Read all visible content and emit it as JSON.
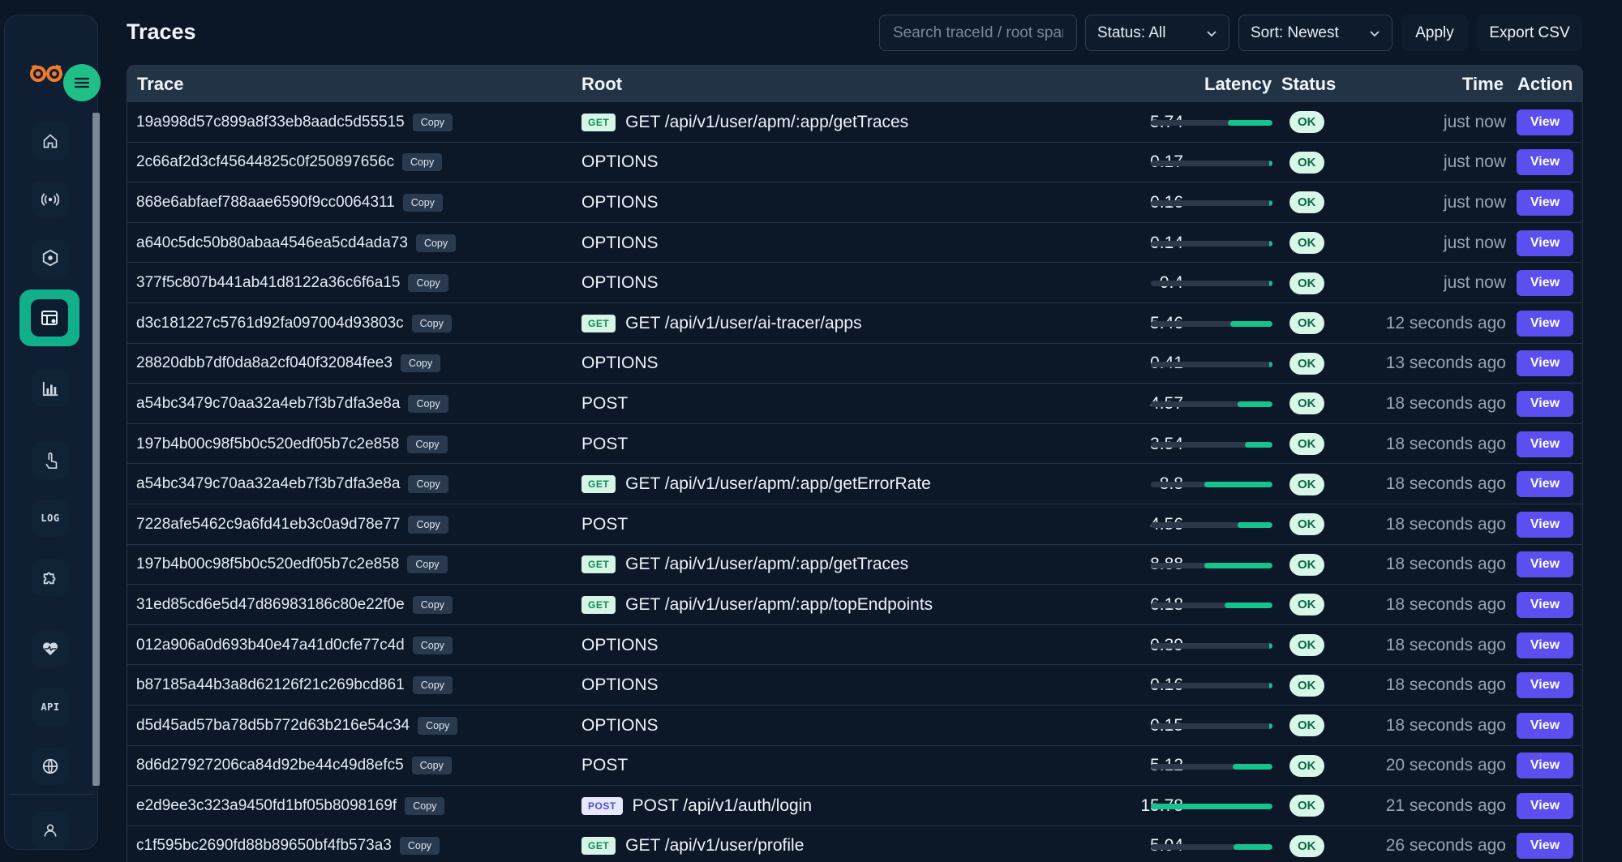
{
  "page": {
    "title": "Traces"
  },
  "toolbar": {
    "search_placeholder": "Search traceId / root span",
    "status_select": "Status: All",
    "sort_select": "Sort: Newest",
    "apply_label": "Apply",
    "export_label": "Export CSV"
  },
  "sidebar": {
    "nav": [
      {
        "name": "home-icon"
      },
      {
        "name": "broadcast-icon"
      },
      {
        "name": "cluster-icon"
      },
      {
        "name": "traces-icon",
        "active": true
      },
      {
        "name": "bar-chart-icon"
      },
      {
        "name": "touch-icon"
      },
      {
        "name": "log-icon",
        "text": "LOG"
      },
      {
        "name": "puzzle-icon"
      },
      {
        "name": "heartbeat-icon"
      },
      {
        "name": "api-icon",
        "text": "API"
      },
      {
        "name": "globe-icon"
      },
      {
        "name": "user-icon"
      }
    ]
  },
  "table": {
    "columns": [
      "Trace",
      "Root",
      "Latency",
      "Status",
      "Time",
      "Action"
    ],
    "copy_label": "Copy",
    "view_label": "View",
    "latency_max": 15.78,
    "rows": [
      {
        "trace": "19a998d57c899a8f33eb8aadc5d55515",
        "method": "GET",
        "root": "GET /api/v1/user/apm/:app/getTraces",
        "latency": "5.74",
        "status": "OK",
        "time": "just now"
      },
      {
        "trace": "2c66af2d3cf45644825c0f250897656c",
        "method": "",
        "root": "OPTIONS",
        "latency": "0.17",
        "status": "OK",
        "time": "just now"
      },
      {
        "trace": "868e6abfaef788aae6590f9cc0064311",
        "method": "",
        "root": "OPTIONS",
        "latency": "0.16",
        "status": "OK",
        "time": "just now"
      },
      {
        "trace": "a640c5dc50b80abaa4546ea5cd4ada73",
        "method": "",
        "root": "OPTIONS",
        "latency": "0.14",
        "status": "OK",
        "time": "just now"
      },
      {
        "trace": "377f5c807b441ab41d8122a36c6f6a15",
        "method": "",
        "root": "OPTIONS",
        "latency": "0.4",
        "status": "OK",
        "time": "just now"
      },
      {
        "trace": "d3c181227c5761d92fa097004d93803c",
        "method": "GET",
        "root": "GET /api/v1/user/ai-tracer/apps",
        "latency": "5.46",
        "status": "OK",
        "time": "12 seconds ago"
      },
      {
        "trace": "28820dbb7df0da8a2cf040f32084fee3",
        "method": "",
        "root": "OPTIONS",
        "latency": "0.41",
        "status": "OK",
        "time": "13 seconds ago"
      },
      {
        "trace": "a54bc3479c70aa32a4eb7f3b7dfa3e8a",
        "method": "",
        "root": "POST",
        "latency": "4.57",
        "status": "OK",
        "time": "18 seconds ago"
      },
      {
        "trace": "197b4b00c98f5b0c520edf05b7c2e858",
        "method": "",
        "root": "POST",
        "latency": "3.54",
        "status": "OK",
        "time": "18 seconds ago"
      },
      {
        "trace": "a54bc3479c70aa32a4eb7f3b7dfa3e8a",
        "method": "GET",
        "root": "GET /api/v1/user/apm/:app/getErrorRate",
        "latency": "8.8",
        "status": "OK",
        "time": "18 seconds ago"
      },
      {
        "trace": "7228afe5462c9a6fd41eb3c0a9d78e77",
        "method": "",
        "root": "POST",
        "latency": "4.56",
        "status": "OK",
        "time": "18 seconds ago"
      },
      {
        "trace": "197b4b00c98f5b0c520edf05b7c2e858",
        "method": "GET",
        "root": "GET /api/v1/user/apm/:app/getTraces",
        "latency": "8.88",
        "status": "OK",
        "time": "18 seconds ago"
      },
      {
        "trace": "31ed85cd6e5d47d86983186c80e22f0e",
        "method": "GET",
        "root": "GET /api/v1/user/apm/:app/topEndpoints",
        "latency": "6.18",
        "status": "OK",
        "time": "18 seconds ago"
      },
      {
        "trace": "012a906a0d693b40e47a41d0cfe77c4d",
        "method": "",
        "root": "OPTIONS",
        "latency": "0.39",
        "status": "OK",
        "time": "18 seconds ago"
      },
      {
        "trace": "b87185a44b3a8d62126f21c269bcd861",
        "method": "",
        "root": "OPTIONS",
        "latency": "0.16",
        "status": "OK",
        "time": "18 seconds ago"
      },
      {
        "trace": "d5d45ad57ba78d5b772d63b216e54c34",
        "method": "",
        "root": "OPTIONS",
        "latency": "0.15",
        "status": "OK",
        "time": "18 seconds ago"
      },
      {
        "trace": "8d6d27927206ca84d92be44c49d8efc5",
        "method": "",
        "root": "POST",
        "latency": "5.12",
        "status": "OK",
        "time": "20 seconds ago"
      },
      {
        "trace": "e2d9ee3c323a9450fd1bf05b8098169f",
        "method": "POST",
        "root": "POST /api/v1/auth/login",
        "latency": "15.78",
        "status": "OK",
        "time": "21 seconds ago"
      },
      {
        "trace": "c1f595bc2690fd88b89650bf4fb573a3",
        "method": "GET",
        "root": "GET /api/v1/user/profile",
        "latency": "5.04",
        "status": "OK",
        "time": "26 seconds ago"
      }
    ]
  },
  "colors": {
    "accent": "#14c48c",
    "view_button": "#5b4ff0",
    "background": "#0b1626"
  }
}
